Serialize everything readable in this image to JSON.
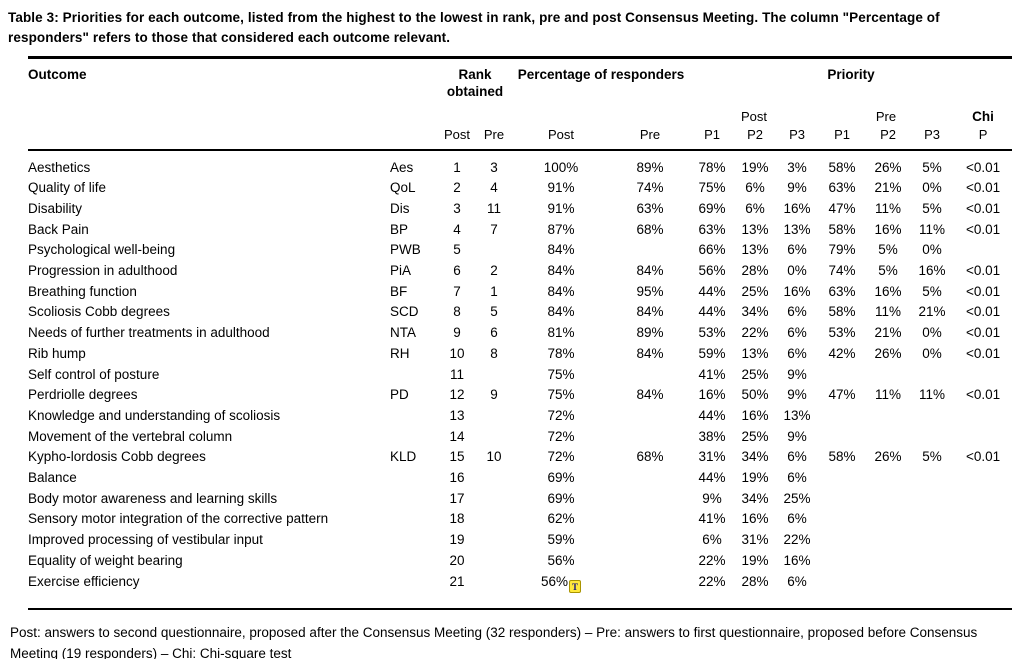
{
  "title": "Table 3: Priorities for each outcome, listed from the highest to the lowest in rank, pre and post Consensus Meeting. The column \"Percentage of responders\" refers to those that considered each outcome relevant.",
  "table": {
    "headers": {
      "outcome": "Outcome",
      "rank_obtained": "Rank obtained",
      "percentage_of_responders": "Percentage of responders",
      "priority": "Priority",
      "post": "Post",
      "pre": "Pre",
      "chi": "Chi",
      "p": "P",
      "p1": "P1",
      "p2": "P2",
      "p3": "P3"
    },
    "rows": [
      {
        "outcome": "Aesthetics",
        "abbr": "Aes",
        "rank_post": "1",
        "rank_pre": "3",
        "pct_post": "100%",
        "pct_pre": "89%",
        "post_p1": "78%",
        "post_p2": "19%",
        "post_p3": "3%",
        "pre_p1": "58%",
        "pre_p2": "26%",
        "pre_p3": "5%",
        "chi_p": "<0.01"
      },
      {
        "outcome": "Quality of life",
        "abbr": "QoL",
        "rank_post": "2",
        "rank_pre": "4",
        "pct_post": "91%",
        "pct_pre": "74%",
        "post_p1": "75%",
        "post_p2": "6%",
        "post_p3": "9%",
        "pre_p1": "63%",
        "pre_p2": "21%",
        "pre_p3": "0%",
        "chi_p": "<0.01"
      },
      {
        "outcome": "Disability",
        "abbr": "Dis",
        "rank_post": "3",
        "rank_pre": "11",
        "pct_post": "91%",
        "pct_pre": "63%",
        "post_p1": "69%",
        "post_p2": "6%",
        "post_p3": "16%",
        "pre_p1": "47%",
        "pre_p2": "11%",
        "pre_p3": "5%",
        "chi_p": "<0.01"
      },
      {
        "outcome": "Back Pain",
        "abbr": "BP",
        "rank_post": "4",
        "rank_pre": "7",
        "pct_post": "87%",
        "pct_pre": "68%",
        "post_p1": "63%",
        "post_p2": "13%",
        "post_p3": "13%",
        "pre_p1": "58%",
        "pre_p2": "16%",
        "pre_p3": "11%",
        "chi_p": "<0.01"
      },
      {
        "outcome": "Psychological well-being",
        "abbr": "PWB",
        "rank_post": "5",
        "rank_pre": "",
        "pct_post": "84%",
        "pct_pre": "",
        "post_p1": "66%",
        "post_p2": "13%",
        "post_p3": "6%",
        "pre_p1": "79%",
        "pre_p2": "5%",
        "pre_p3": "0%",
        "chi_p": ""
      },
      {
        "outcome": "Progression in adulthood",
        "abbr": "PiA",
        "rank_post": "6",
        "rank_pre": "2",
        "pct_post": "84%",
        "pct_pre": "84%",
        "post_p1": "56%",
        "post_p2": "28%",
        "post_p3": "0%",
        "pre_p1": "74%",
        "pre_p2": "5%",
        "pre_p3": "16%",
        "chi_p": "<0.01"
      },
      {
        "outcome": "Breathing function",
        "abbr": "BF",
        "rank_post": "7",
        "rank_pre": "1",
        "pct_post": "84%",
        "pct_pre": "95%",
        "post_p1": "44%",
        "post_p2": "25%",
        "post_p3": "16%",
        "pre_p1": "63%",
        "pre_p2": "16%",
        "pre_p3": "5%",
        "chi_p": "<0.01"
      },
      {
        "outcome": "Scoliosis Cobb degrees",
        "abbr": "SCD",
        "rank_post": "8",
        "rank_pre": "5",
        "pct_post": "84%",
        "pct_pre": "84%",
        "post_p1": "44%",
        "post_p2": "34%",
        "post_p3": "6%",
        "pre_p1": "58%",
        "pre_p2": "11%",
        "pre_p3": "21%",
        "chi_p": "<0.01"
      },
      {
        "outcome": "Needs of further treatments in adulthood",
        "abbr": "NTA",
        "rank_post": "9",
        "rank_pre": "6",
        "pct_post": "81%",
        "pct_pre": "89%",
        "post_p1": "53%",
        "post_p2": "22%",
        "post_p3": "6%",
        "pre_p1": "53%",
        "pre_p2": "21%",
        "pre_p3": "0%",
        "chi_p": "<0.01"
      },
      {
        "outcome": "Rib hump",
        "abbr": "RH",
        "rank_post": "10",
        "rank_pre": "8",
        "pct_post": "78%",
        "pct_pre": "84%",
        "post_p1": "59%",
        "post_p2": "13%",
        "post_p3": "6%",
        "pre_p1": "42%",
        "pre_p2": "26%",
        "pre_p3": "0%",
        "chi_p": "<0.01"
      },
      {
        "outcome": "Self control of posture",
        "abbr": "",
        "rank_post": "11",
        "rank_pre": "",
        "pct_post": "75%",
        "pct_pre": "",
        "post_p1": "41%",
        "post_p2": "25%",
        "post_p3": "9%",
        "pre_p1": "",
        "pre_p2": "",
        "pre_p3": "",
        "chi_p": ""
      },
      {
        "outcome": "Perdriolle degrees",
        "abbr": "PD",
        "rank_post": "12",
        "rank_pre": "9",
        "pct_post": "75%",
        "pct_pre": "84%",
        "post_p1": "16%",
        "post_p2": "50%",
        "post_p3": "9%",
        "pre_p1": "47%",
        "pre_p2": "11%",
        "pre_p3": "11%",
        "chi_p": "<0.01"
      },
      {
        "outcome": "Knowledge and understanding of scoliosis",
        "abbr": "",
        "rank_post": "13",
        "rank_pre": "",
        "pct_post": "72%",
        "pct_pre": "",
        "post_p1": "44%",
        "post_p2": "16%",
        "post_p3": "13%",
        "pre_p1": "",
        "pre_p2": "",
        "pre_p3": "",
        "chi_p": ""
      },
      {
        "outcome": "Movement of the vertebral column",
        "abbr": "",
        "rank_post": "14",
        "rank_pre": "",
        "pct_post": "72%",
        "pct_pre": "",
        "post_p1": "38%",
        "post_p2": "25%",
        "post_p3": "9%",
        "pre_p1": "",
        "pre_p2": "",
        "pre_p3": "",
        "chi_p": ""
      },
      {
        "outcome": "Kypho-lordosis Cobb degrees",
        "abbr": "KLD",
        "rank_post": "15",
        "rank_pre": "10",
        "pct_post": "72%",
        "pct_pre": "68%",
        "post_p1": "31%",
        "post_p2": "34%",
        "post_p3": "6%",
        "pre_p1": "58%",
        "pre_p2": "26%",
        "pre_p3": "5%",
        "chi_p": "<0.01"
      },
      {
        "outcome": "Balance",
        "abbr": "",
        "rank_post": "16",
        "rank_pre": "",
        "pct_post": "69%",
        "pct_pre": "",
        "post_p1": "44%",
        "post_p2": "19%",
        "post_p3": "6%",
        "pre_p1": "",
        "pre_p2": "",
        "pre_p3": "",
        "chi_p": ""
      },
      {
        "outcome": "Body motor awareness and learning skills",
        "abbr": "",
        "rank_post": "17",
        "rank_pre": "",
        "pct_post": "69%",
        "pct_pre": "",
        "post_p1": "9%",
        "post_p2": "34%",
        "post_p3": "25%",
        "pre_p1": "",
        "pre_p2": "",
        "pre_p3": "",
        "chi_p": ""
      },
      {
        "outcome": "Sensory motor integration of the corrective pattern",
        "abbr": "",
        "rank_post": "18",
        "rank_pre": "",
        "pct_post": "62%",
        "pct_pre": "",
        "post_p1": "41%",
        "post_p2": "16%",
        "post_p3": "6%",
        "pre_p1": "",
        "pre_p2": "",
        "pre_p3": "",
        "chi_p": ""
      },
      {
        "outcome": "Improved processing of vestibular input",
        "abbr": "",
        "rank_post": "19",
        "rank_pre": "",
        "pct_post": "59%",
        "pct_pre": "",
        "post_p1": "6%",
        "post_p2": "31%",
        "post_p3": "22%",
        "pre_p1": "",
        "pre_p2": "",
        "pre_p3": "",
        "chi_p": ""
      },
      {
        "outcome": "Equality of weight bearing",
        "abbr": "",
        "rank_post": "20",
        "rank_pre": "",
        "pct_post": "56%",
        "pct_pre": "",
        "post_p1": "22%",
        "post_p2": "19%",
        "post_p3": "16%",
        "pre_p1": "",
        "pre_p2": "",
        "pre_p3": "",
        "chi_p": ""
      },
      {
        "outcome": "Exercise efficiency",
        "abbr": "",
        "rank_post": "21",
        "rank_pre": "",
        "pct_post": "56%",
        "pct_pre": "",
        "post_p1": "22%",
        "post_p2": "28%",
        "post_p3": "6%",
        "pre_p1": "",
        "pre_p2": "",
        "pre_p3": "",
        "chi_p": "",
        "marker": true
      }
    ]
  },
  "annotation_marker": "T",
  "annotation_color": "#ffe93b",
  "footnote": "Post: answers to second questionnaire, proposed after the Consensus Meeting (32 responders) – Pre: answers to first questionnaire, proposed before Consensus Meeting (19 responders) – Chi: Chi-square test"
}
